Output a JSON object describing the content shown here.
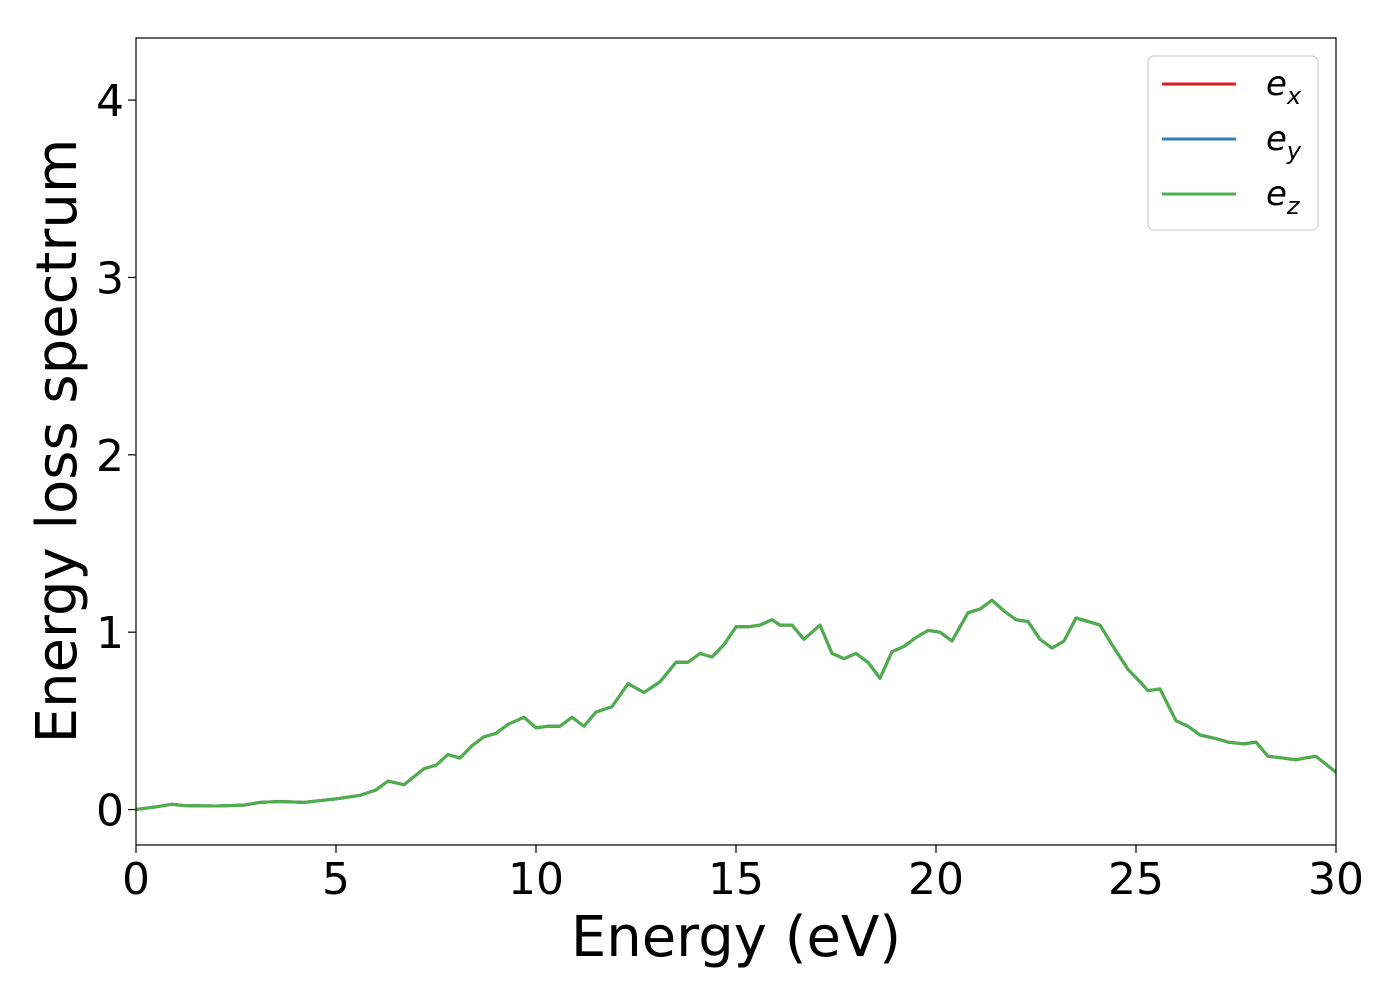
{
  "chart_data": {
    "type": "line",
    "title": "",
    "xlabel": "Energy (eV)",
    "ylabel": "Energy loss spectrum",
    "xlim": [
      0,
      30
    ],
    "ylim": [
      -0.2,
      4.35
    ],
    "xticks": [
      0,
      5,
      10,
      15,
      20,
      25,
      30
    ],
    "yticks": [
      0,
      1,
      2,
      3,
      4
    ],
    "grid": false,
    "legend_position": "top-right",
    "x": [
      0.0,
      0.5,
      0.9,
      1.2,
      2.0,
      2.7,
      3.1,
      3.6,
      4.2,
      5.0,
      5.6,
      6.0,
      6.3,
      6.7,
      7.2,
      7.5,
      7.8,
      8.1,
      8.4,
      8.7,
      9.0,
      9.3,
      9.7,
      10.0,
      10.3,
      10.6,
      10.9,
      11.2,
      11.5,
      11.9,
      12.3,
      12.7,
      13.1,
      13.5,
      13.8,
      14.1,
      14.4,
      14.7,
      15.0,
      15.3,
      15.6,
      15.9,
      16.1,
      16.4,
      16.7,
      17.1,
      17.4,
      17.7,
      18.0,
      18.3,
      18.6,
      18.9,
      19.2,
      19.5,
      19.8,
      20.1,
      20.4,
      20.8,
      21.1,
      21.4,
      21.7,
      22.0,
      22.3,
      22.6,
      22.9,
      23.2,
      23.5,
      23.8,
      24.1,
      24.4,
      24.8,
      25.1,
      25.3,
      25.6,
      26.0,
      26.3,
      26.6,
      27.0,
      27.3,
      27.7,
      28.0,
      28.3,
      28.7,
      29.0,
      29.2,
      29.5,
      30.0
    ],
    "series": [
      {
        "name": "e_x",
        "label_base": "e",
        "label_sub": "x",
        "color": "#e41a1c",
        "values": [
          0.0,
          0.015,
          0.03,
          0.022,
          0.02,
          0.025,
          0.04,
          0.045,
          0.04,
          0.06,
          0.08,
          0.11,
          0.16,
          0.14,
          0.23,
          0.25,
          0.31,
          0.29,
          0.36,
          0.41,
          0.43,
          0.48,
          0.52,
          0.46,
          0.47,
          0.47,
          0.52,
          0.47,
          0.55,
          0.58,
          0.71,
          0.66,
          0.72,
          0.83,
          0.83,
          0.88,
          0.86,
          0.93,
          1.03,
          1.03,
          1.04,
          1.07,
          1.04,
          1.04,
          0.96,
          1.04,
          0.88,
          0.85,
          0.88,
          0.83,
          0.74,
          0.89,
          0.92,
          0.97,
          1.01,
          1.0,
          0.95,
          1.11,
          1.13,
          1.18,
          1.12,
          1.07,
          1.06,
          0.96,
          0.91,
          0.95,
          1.08,
          1.06,
          1.04,
          0.93,
          0.79,
          0.72,
          0.67,
          0.68,
          0.5,
          0.47,
          0.42,
          0.4,
          0.38,
          0.37,
          0.38,
          0.3,
          0.29,
          0.28,
          0.29,
          0.3,
          0.21
        ]
      },
      {
        "name": "e_y",
        "label_base": "e",
        "label_sub": "y",
        "color": "#377eb8",
        "values": [
          0.0,
          0.015,
          0.03,
          0.022,
          0.02,
          0.025,
          0.04,
          0.045,
          0.04,
          0.06,
          0.08,
          0.11,
          0.16,
          0.14,
          0.23,
          0.25,
          0.31,
          0.29,
          0.36,
          0.41,
          0.43,
          0.48,
          0.52,
          0.46,
          0.47,
          0.47,
          0.52,
          0.47,
          0.55,
          0.58,
          0.71,
          0.66,
          0.72,
          0.83,
          0.83,
          0.88,
          0.86,
          0.93,
          1.03,
          1.03,
          1.04,
          1.07,
          1.04,
          1.04,
          0.96,
          1.04,
          0.88,
          0.85,
          0.88,
          0.83,
          0.74,
          0.89,
          0.92,
          0.97,
          1.01,
          1.0,
          0.95,
          1.11,
          1.13,
          1.18,
          1.12,
          1.07,
          1.06,
          0.96,
          0.91,
          0.95,
          1.08,
          1.06,
          1.04,
          0.93,
          0.79,
          0.72,
          0.67,
          0.68,
          0.5,
          0.47,
          0.42,
          0.4,
          0.38,
          0.37,
          0.38,
          0.3,
          0.29,
          0.28,
          0.29,
          0.3,
          0.21
        ]
      },
      {
        "name": "e_z",
        "label_base": "e",
        "label_sub": "z",
        "color": "#4daf4a",
        "values": [
          0.0,
          0.015,
          0.03,
          0.022,
          0.02,
          0.025,
          0.04,
          0.045,
          0.04,
          0.06,
          0.08,
          0.11,
          0.16,
          0.14,
          0.23,
          0.25,
          0.31,
          0.29,
          0.36,
          0.41,
          0.43,
          0.48,
          0.52,
          0.46,
          0.47,
          0.47,
          0.52,
          0.47,
          0.55,
          0.58,
          0.71,
          0.66,
          0.72,
          0.83,
          0.83,
          0.88,
          0.86,
          0.93,
          1.03,
          1.03,
          1.04,
          1.07,
          1.04,
          1.04,
          0.96,
          1.04,
          0.88,
          0.85,
          0.88,
          0.83,
          0.74,
          0.89,
          0.92,
          0.97,
          1.01,
          1.0,
          0.95,
          1.11,
          1.13,
          1.18,
          1.12,
          1.07,
          1.06,
          0.96,
          0.91,
          0.95,
          1.08,
          1.06,
          1.04,
          0.93,
          0.79,
          0.72,
          0.67,
          0.68,
          0.5,
          0.47,
          0.42,
          0.4,
          0.38,
          0.37,
          0.38,
          0.3,
          0.29,
          0.28,
          0.29,
          0.3,
          0.21
        ]
      }
    ]
  }
}
